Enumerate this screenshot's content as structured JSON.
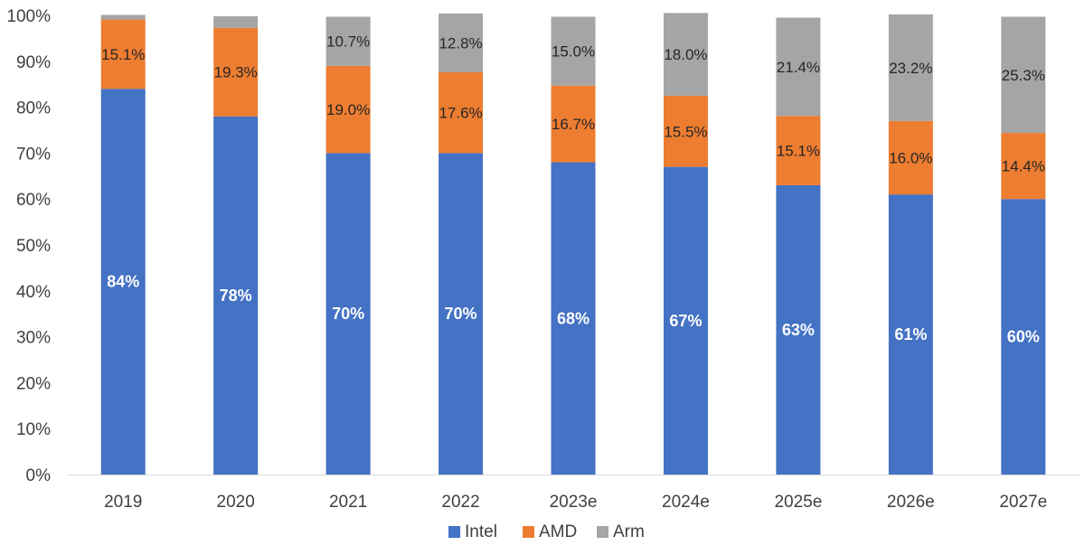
{
  "chart_data": {
    "type": "bar",
    "stacked": true,
    "title": "",
    "xlabel": "",
    "ylabel": "",
    "ylim": [
      0,
      100
    ],
    "yticks": [
      "0%",
      "10%",
      "20%",
      "30%",
      "40%",
      "50%",
      "60%",
      "70%",
      "80%",
      "90%",
      "100%"
    ],
    "categories": [
      "2019",
      "2020",
      "2021",
      "2022",
      "2023e",
      "2024e",
      "2025e",
      "2026e",
      "2027e"
    ],
    "series": [
      {
        "name": "Intel",
        "color": "#4472C4",
        "values": [
          84,
          78,
          70,
          70,
          68,
          67,
          63,
          61,
          60
        ],
        "labels": [
          "84%",
          "78%",
          "70%",
          "70%",
          "68%",
          "67%",
          "63%",
          "61%",
          "60%"
        ]
      },
      {
        "name": "AMD",
        "color": "#ED7D31",
        "values": [
          15.1,
          19.3,
          19.0,
          17.6,
          16.7,
          15.5,
          15.1,
          16.0,
          14.4
        ],
        "labels": [
          "15.1%",
          "19.3%",
          "19.0%",
          "17.6%",
          "16.7%",
          "15.5%",
          "15.1%",
          "16.0%",
          "14.4%"
        ]
      },
      {
        "name": "Arm",
        "color": "#A5A5A5",
        "values": [
          1,
          2.5,
          10.7,
          12.8,
          15.0,
          18.0,
          21.4,
          23.2,
          25.3
        ],
        "labels": [
          "",
          "",
          "10.7%",
          "12.8%",
          "15.0%",
          "18.0%",
          "21.4%",
          "23.2%",
          "25.3%"
        ]
      }
    ],
    "legend": {
      "position": "bottom"
    }
  }
}
